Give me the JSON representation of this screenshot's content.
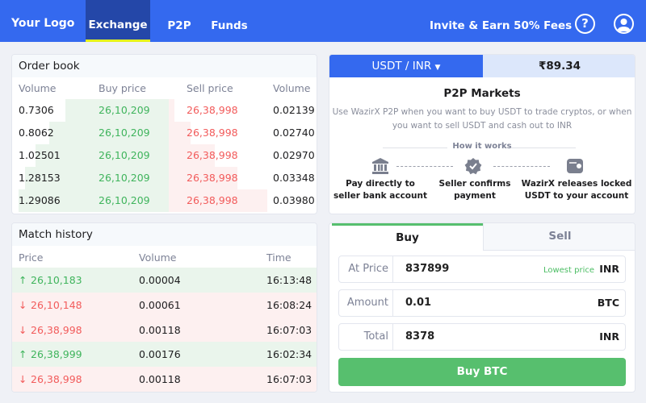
{
  "header": {
    "logo": "Your Logo",
    "nav": [
      {
        "label": "Exchange",
        "active": true
      },
      {
        "label": "P2P"
      },
      {
        "label": "Funds"
      }
    ],
    "invite": "Invite & Earn 50% Fees",
    "help_icon": "question-circle-icon",
    "profile_icon": "user-circle-icon"
  },
  "colors": {
    "brand": "#3469ef",
    "buy": "#3fb45c",
    "sell": "#f25b5b",
    "tab_underline": "#e6f21a"
  },
  "order_book": {
    "title": "Order book",
    "columns": [
      "Volume",
      "Buy price",
      "Sell price",
      "Volume"
    ],
    "rows": [
      [
        "0.7306",
        "26,10,209",
        "26,38,998",
        "0.02139"
      ],
      [
        "0.8062",
        "26,10,209",
        "26,38,998",
        "0.02740"
      ],
      [
        "1.02501",
        "26,10,209",
        "26,38,998",
        "0.02970"
      ],
      [
        "1.28153",
        "26,10,209",
        "26,38,998",
        "0.03348"
      ],
      [
        "1.29086",
        "26,10,209",
        "26,38,998",
        "0.03980"
      ]
    ]
  },
  "match_history": {
    "title": "Match history",
    "columns": [
      "Price",
      "Volume",
      "Time"
    ],
    "rows": [
      {
        "dir": "up",
        "price": "26,10,183",
        "volume": "0.00004",
        "time": "16:13:48"
      },
      {
        "dir": "down",
        "price": "26,10,148",
        "volume": "0.00061",
        "time": "16:08:24"
      },
      {
        "dir": "down",
        "price": "26,38,998",
        "volume": "0.00118",
        "time": "16:07:03"
      },
      {
        "dir": "up",
        "price": "26,38,999",
        "volume": "0.00176",
        "time": "16:02:34"
      },
      {
        "dir": "down",
        "price": "26,38,998",
        "volume": "0.00118",
        "time": "16:07:03"
      }
    ]
  },
  "p2p": {
    "pair": "USDT / INR",
    "price": "₹89.34",
    "title": "P2P Markets",
    "desc1": "Use WazirX P2P when you want to buy USDT to trade cryptos, or when",
    "desc2": "you want to sell USDT and cash out to INR",
    "how": "How it works",
    "steps": [
      {
        "icon": "bank-icon",
        "l1": "Pay directly to",
        "l2": "seller bank account"
      },
      {
        "icon": "verified-badge-icon",
        "l1": "Seller confirms",
        "l2": "payment"
      },
      {
        "icon": "wallet-icon",
        "l1": "WazirX releases locked",
        "l2": "USDT to your account"
      }
    ]
  },
  "trade": {
    "tabs": [
      "Buy",
      "Sell"
    ],
    "active_tab": "Buy",
    "fields": [
      {
        "label": "At Price",
        "value": "837899",
        "hint": "Lowest price",
        "unit": "INR"
      },
      {
        "label": "Amount",
        "value": "0.01",
        "unit": "BTC"
      },
      {
        "label": "Total",
        "value": "8378",
        "unit": "INR"
      }
    ],
    "button": "Buy BTC"
  }
}
